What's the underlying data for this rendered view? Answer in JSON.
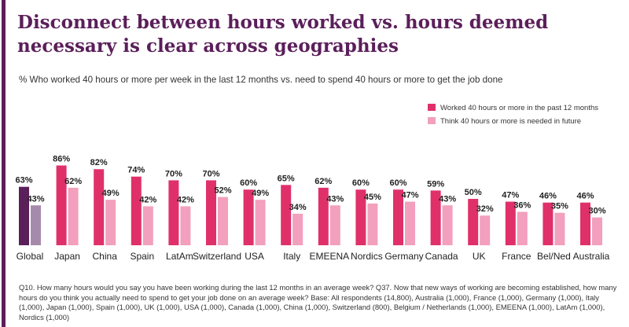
{
  "header": {
    "title": "Disconnect between hours worked vs. hours deemed necessary is clear across geographies",
    "subtitle": "% Who worked 40 hours or more per week in the last 12 months vs. need to spend 40 hours or more to get the job done"
  },
  "footnote": "Q10. How many hours would you say you have been working during the last 12 months in an average week? Q37. Now that new ways of working are becoming established, how many hours do you think you actually need to spend to get your job done on an average week? Base: All respondents (14,800), Australia (1,000), France (1,000), Germany (1,000), Italy (1,000), Japan (1,000), Spain (1,000), UK (1,000), USA (1,000), Canada (1,000), China (1,000), Switzerland (800), Belgium / Netherlands (1,000), EMEENA (1,000), LatAm (1,000), Nordics (1,000)",
  "colors": {
    "accent": "#5b1f5a",
    "worked": "#e0306a",
    "think": "#f2a0bd",
    "global_worked": "#5b1f5a",
    "global_think": "#a68aab"
  },
  "chart_data": {
    "type": "bar",
    "categories": [
      "Global",
      "Japan",
      "China",
      "Spain",
      "LatAm",
      "Switzerland",
      "USA",
      "Italy",
      "EMEENA",
      "Nordics",
      "Germany",
      "Canada",
      "UK",
      "France",
      "Bel/Ned",
      "Australia"
    ],
    "series": [
      {
        "name": "Worked 40 hours or more in the past 12 months",
        "values": [
          63,
          86,
          82,
          74,
          70,
          70,
          60,
          65,
          62,
          60,
          60,
          59,
          50,
          47,
          46,
          46
        ],
        "labels": [
          "63%",
          "86%",
          "82%",
          "74%",
          "70%",
          "70%",
          "60%",
          "65%",
          "62%",
          "60%",
          "60%",
          "59%",
          "50%",
          "47%",
          "46%",
          "46%"
        ]
      },
      {
        "name": "Think 40 hours or more is needed in future",
        "values": [
          43,
          62,
          49,
          42,
          42,
          52,
          49,
          34,
          43,
          45,
          47,
          43,
          32,
          36,
          35,
          30
        ],
        "labels": [
          "43%",
          "62%",
          "49%",
          "42%",
          "42%",
          "52%",
          "49%",
          "34%",
          "43%",
          "45%",
          "47%",
          "43%",
          "32%",
          "36%",
          "35%",
          "30%"
        ]
      }
    ],
    "ylim": [
      0,
      100
    ],
    "grid": false,
    "legend_position": "top-right"
  }
}
